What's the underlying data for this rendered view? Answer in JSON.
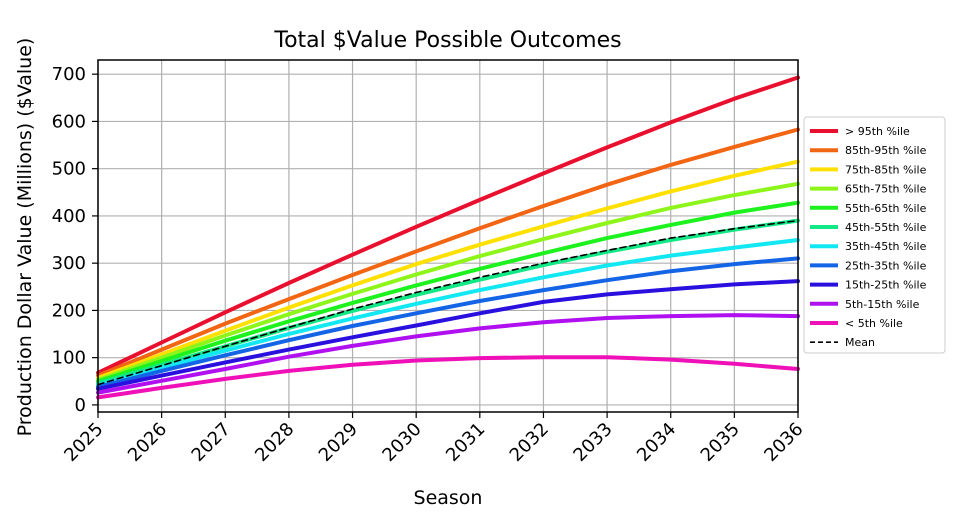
{
  "chart_data": {
    "type": "line",
    "title": "Total $Value Possible Outcomes",
    "xlabel": "Season",
    "ylabel": "Production Dollar Value (Millions) ($Value)",
    "x": [
      2025,
      2026,
      2027,
      2028,
      2029,
      2030,
      2031,
      2032,
      2033,
      2034,
      2035,
      2036
    ],
    "xlim": [
      2025,
      2036
    ],
    "ylim": [
      -15,
      730
    ],
    "xticks": [
      "2025",
      "2026",
      "2027",
      "2028",
      "2029",
      "2030",
      "2031",
      "2032",
      "2033",
      "2034",
      "2035",
      "2036"
    ],
    "yticks": [
      "0",
      "100",
      "200",
      "300",
      "400",
      "500",
      "600",
      "700"
    ],
    "grid": true,
    "legend_position": "right",
    "series": [
      {
        "name": "> 95th %ile",
        "color": "#e8102e",
        "style": "solid",
        "values": [
          68,
          132,
          196,
          258,
          318,
          377,
          434,
          490,
          545,
          598,
          648,
          693
        ]
      },
      {
        "name": "85th-95th %ile",
        "color": "#f26513",
        "style": "solid",
        "values": [
          62,
          117,
          172,
          224,
          275,
          325,
          374,
          421,
          466,
          508,
          546,
          583
        ]
      },
      {
        "name": "75th-85th %ile",
        "color": "#ffe000",
        "style": "solid",
        "values": [
          57,
          107,
          157,
          206,
          253,
          298,
          339,
          378,
          416,
          452,
          485,
          515
        ]
      },
      {
        "name": "65th-75th %ile",
        "color": "#8ef51a",
        "style": "solid",
        "values": [
          53,
          100,
          147,
          192,
          235,
          276,
          315,
          351,
          385,
          417,
          444,
          468
        ]
      },
      {
        "name": "55th-65th %ile",
        "color": "#1ef21e",
        "style": "solid",
        "values": [
          50,
          93,
          136,
          177,
          216,
          253,
          288,
          321,
          353,
          381,
          407,
          428
        ]
      },
      {
        "name": "45th-55th %ile",
        "color": "#12e886",
        "style": "solid",
        "values": [
          46,
          85,
          124,
          163,
          199,
          233,
          265,
          296,
          324,
          349,
          371,
          390
        ]
      },
      {
        "name": "35th-45th %ile",
        "color": "#12e8f2",
        "style": "solid",
        "values": [
          42,
          79,
          115,
          150,
          183,
          214,
          243,
          270,
          295,
          316,
          333,
          349
        ]
      },
      {
        "name": "25th-35th %ile",
        "color": "#1464e6",
        "style": "solid",
        "values": [
          38,
          72,
          105,
          137,
          167,
          194,
          220,
          243,
          264,
          283,
          298,
          310
        ]
      },
      {
        "name": "15th-25th %ile",
        "color": "#2a10de",
        "style": "solid",
        "values": [
          34,
          62,
          90,
          117,
          143,
          168,
          194,
          218,
          234,
          245,
          255,
          262
        ]
      },
      {
        "name": "5th-15th %ile",
        "color": "#b010f0",
        "style": "solid",
        "values": [
          26,
          51,
          76,
          102,
          125,
          145,
          162,
          175,
          184,
          188,
          190,
          188
        ]
      },
      {
        "name": "< 5th %ile",
        "color": "#f010b8",
        "style": "solid",
        "values": [
          16,
          36,
          55,
          72,
          85,
          94,
          99,
          101,
          101,
          96,
          87,
          76
        ]
      },
      {
        "name": "Mean",
        "color": "#000000",
        "style": "dashed",
        "values": [
          43,
          83,
          124,
          164,
          203,
          238,
          270,
          300,
          327,
          353,
          373,
          390
        ]
      }
    ]
  }
}
